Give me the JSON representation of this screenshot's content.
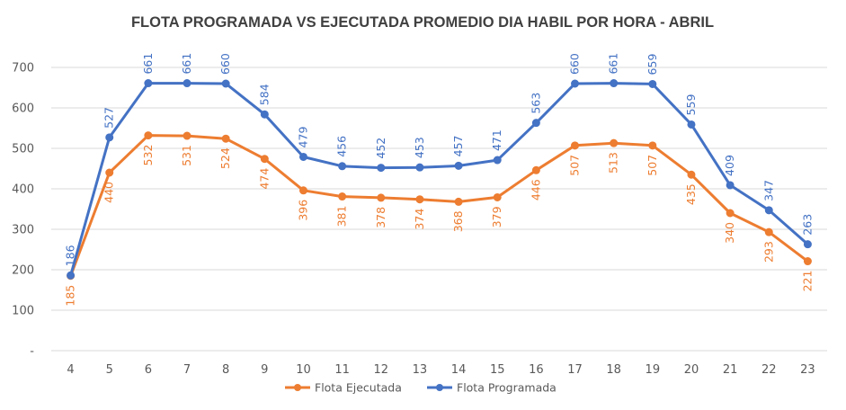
{
  "chart_data": {
    "type": "line",
    "title": "FLOTA PROGRAMADA VS EJECUTADA PROMEDIO DIA HABIL POR HORA - ABRIL",
    "xlabel": "",
    "ylabel": "",
    "categories": [
      "4",
      "5",
      "6",
      "7",
      "8",
      "9",
      "10",
      "11",
      "12",
      "13",
      "14",
      "15",
      "16",
      "17",
      "18",
      "19",
      "20",
      "21",
      "22",
      "23"
    ],
    "y_ticks": [
      "-",
      "100",
      "200",
      "300",
      "400",
      "500",
      "600",
      "700"
    ],
    "ylim": [
      0,
      700
    ],
    "grid": "horizontal",
    "legend_position": "bottom",
    "series": [
      {
        "name": "Flota Ejecutada",
        "color": "#ED7D31",
        "values": [
          185,
          440,
          532,
          531,
          524,
          474,
          396,
          381,
          378,
          374,
          368,
          379,
          446,
          507,
          513,
          507,
          435,
          340,
          293,
          221
        ],
        "label_position": "below"
      },
      {
        "name": "Flota Programada",
        "color": "#4472C4",
        "values": [
          186,
          527,
          661,
          661,
          660,
          584,
          479,
          456,
          452,
          453,
          457,
          471,
          563,
          660,
          661,
          659,
          559,
          409,
          347,
          263
        ],
        "label_position": "above"
      }
    ]
  }
}
